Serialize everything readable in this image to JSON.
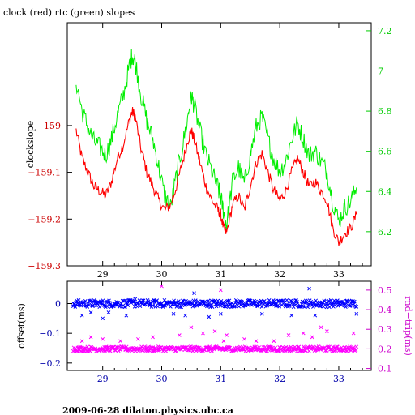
{
  "footer_text": "2009-06-28  dilaton.physics.ubc.ca",
  "chart_data": [
    {
      "type": "line",
      "title": "clock (red) rtc (green) slopes",
      "ylabel": "clockslope",
      "xlim": [
        28.4,
        33.55
      ],
      "ylim": [
        -159.3,
        -158.78
      ],
      "y2lim": [
        6.03,
        7.24
      ],
      "x_ticks": [
        29,
        30,
        31,
        32,
        33
      ],
      "y_ticks": [
        -159,
        -159.1,
        -159.2,
        -159.3
      ],
      "y_tick_labels": [
        "−159",
        "−159.1",
        "−159.2",
        "−159.3"
      ],
      "y2_ticks": [
        6.2,
        6.4,
        6.6,
        6.8,
        7,
        7.2
      ],
      "y2_tick_labels": [
        "6.2",
        "6.4",
        "6.6",
        "6.8",
        "7",
        "7.2"
      ],
      "colors": {
        "left_axis": "#cc0000",
        "right_axis": "#00cc00"
      },
      "series": [
        {
          "color": "#ff0000",
          "axis": "left",
          "x": [
            28.55,
            28.65,
            28.75,
            28.85,
            28.95,
            29.05,
            29.15,
            29.25,
            29.35,
            29.45,
            29.5,
            29.55,
            29.65,
            29.75,
            29.85,
            29.95,
            30.05,
            30.15,
            30.25,
            30.35,
            30.45,
            30.5,
            30.55,
            30.65,
            30.75,
            30.85,
            30.95,
            31.0,
            31.05,
            31.1,
            31.2,
            31.3,
            31.4,
            31.5,
            31.6,
            31.7,
            31.8,
            31.9,
            32.0,
            32.1,
            32.2,
            32.3,
            32.4,
            32.5,
            32.6,
            32.7,
            32.8,
            32.9,
            33.0,
            33.1,
            33.2,
            33.3
          ],
          "y": [
            -159.01,
            -159.07,
            -159.1,
            -159.13,
            -159.14,
            -159.15,
            -159.12,
            -159.07,
            -159.04,
            -158.99,
            -158.97,
            -158.98,
            -159.05,
            -159.1,
            -159.13,
            -159.16,
            -159.18,
            -159.17,
            -159.13,
            -159.08,
            -159.03,
            -159.01,
            -159.03,
            -159.08,
            -159.13,
            -159.16,
            -159.18,
            -159.19,
            -159.22,
            -159.23,
            -159.17,
            -159.15,
            -159.18,
            -159.13,
            -159.08,
            -159.06,
            -159.1,
            -159.14,
            -159.16,
            -159.14,
            -159.1,
            -159.07,
            -159.1,
            -159.13,
            -159.12,
            -159.14,
            -159.16,
            -159.22,
            -159.25,
            -159.23,
            -159.22,
            -159.19
          ]
        },
        {
          "color": "#00ee00",
          "axis": "right",
          "x": [
            28.55,
            28.65,
            28.75,
            28.85,
            28.95,
            29.05,
            29.15,
            29.25,
            29.35,
            29.45,
            29.5,
            29.55,
            29.65,
            29.75,
            29.85,
            29.95,
            30.05,
            30.15,
            30.25,
            30.35,
            30.45,
            30.5,
            30.55,
            30.65,
            30.75,
            30.85,
            30.95,
            31.0,
            31.05,
            31.1,
            31.2,
            31.3,
            31.4,
            31.5,
            31.6,
            31.7,
            31.8,
            31.9,
            32.0,
            32.1,
            32.2,
            32.3,
            32.4,
            32.5,
            32.6,
            32.7,
            32.8,
            32.9,
            33.0,
            33.1,
            33.2,
            33.3
          ],
          "y": [
            6.95,
            6.8,
            6.72,
            6.65,
            6.62,
            6.58,
            6.66,
            6.78,
            6.88,
            7.02,
            7.08,
            7.05,
            6.88,
            6.75,
            6.66,
            6.52,
            6.38,
            6.32,
            6.48,
            6.62,
            6.78,
            6.88,
            6.83,
            6.7,
            6.58,
            6.5,
            6.42,
            6.37,
            6.3,
            6.23,
            6.45,
            6.52,
            6.44,
            6.58,
            6.72,
            6.77,
            6.66,
            6.56,
            6.5,
            6.55,
            6.66,
            6.74,
            6.66,
            6.58,
            6.6,
            6.55,
            6.5,
            6.35,
            6.25,
            6.32,
            6.35,
            6.42
          ]
        }
      ]
    },
    {
      "type": "scatter",
      "ylabel": "offset(ms)",
      "y2label": "rnd−trip(ms)",
      "xlim": [
        28.4,
        33.55
      ],
      "ylim": [
        -0.225,
        0.075
      ],
      "y2lim": [
        0.09,
        0.545
      ],
      "x_ticks": [
        29,
        30,
        31,
        32,
        33
      ],
      "y_ticks": [
        0,
        -0.1,
        -0.2
      ],
      "y_tick_labels": [
        "0",
        "−0.1",
        "−0.2"
      ],
      "y2_ticks": [
        0.1,
        0.2,
        0.3,
        0.4,
        0.5
      ],
      "y2_tick_labels": [
        "0.1",
        "0.2",
        "0.3",
        "0.4",
        "0.5"
      ],
      "colors": {
        "left_axis": "#0000aa",
        "right_axis": "#cc00cc"
      },
      "series": [
        {
          "color": "#0000ff",
          "axis": "left",
          "marker": "x",
          "band": {
            "x": [
              28.5,
              33.3
            ],
            "center": 0.0,
            "spread": 0.012
          },
          "outliers": {
            "x": [
              28.65,
              28.8,
              29.0,
              29.1,
              29.4,
              29.55,
              30.2,
              30.4,
              30.55,
              30.8,
              31.0,
              31.7,
              32.2,
              32.5,
              32.6,
              33.3
            ],
            "y": [
              -0.04,
              -0.03,
              -0.05,
              -0.03,
              -0.04,
              0.015,
              -0.035,
              -0.04,
              0.035,
              -0.045,
              -0.035,
              -0.035,
              -0.04,
              0.05,
              -0.04,
              -0.035
            ]
          }
        },
        {
          "color": "#ff00ff",
          "axis": "right",
          "marker": "x",
          "band": {
            "x": [
              28.5,
              33.3
            ],
            "center": 0.2,
            "spread": 0.012
          },
          "outliers": {
            "x": [
              28.65,
              28.8,
              29.0,
              29.3,
              29.6,
              29.85,
              30.0,
              30.3,
              30.5,
              30.7,
              30.9,
              31.0,
              31.05,
              31.1,
              31.4,
              31.6,
              31.9,
              32.15,
              32.4,
              32.55,
              32.7,
              32.8,
              33.25
            ],
            "y": [
              0.24,
              0.26,
              0.25,
              0.24,
              0.25,
              0.26,
              0.52,
              0.27,
              0.31,
              0.28,
              0.29,
              0.5,
              0.24,
              0.27,
              0.25,
              0.24,
              0.24,
              0.27,
              0.28,
              0.26,
              0.31,
              0.29,
              0.28
            ]
          }
        }
      ]
    }
  ]
}
